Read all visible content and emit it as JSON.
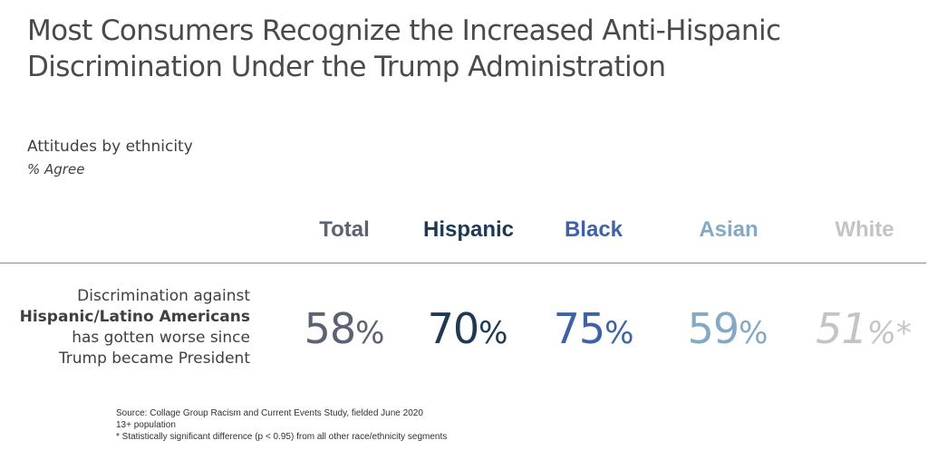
{
  "title": {
    "line1": "Most Consumers Recognize the Increased Anti-Hispanic",
    "line2": "Discrimination Under the Trump Administration"
  },
  "subtitle": "Attitudes by ethnicity",
  "subnote": "% Agree",
  "row": {
    "line1": "Discrimination against",
    "line2": "Hispanic/Latino Americans",
    "line3": "has gotten worse since",
    "line4": "Trump became President"
  },
  "footnotes": {
    "source": "Source: Collage Group Racism and Current Events Study, fielded June 2020",
    "population": "13+ population",
    "significance": "* Statistically significant difference (p < 0.95) from all other race/ethnicity segments"
  },
  "chart_data": {
    "type": "table",
    "unit": "%",
    "rows": [
      "Discrimination against Hispanic/Latino Americans has gotten worse since Trump became President"
    ],
    "columns": [
      {
        "name": "Total",
        "value": 58,
        "value_text": "58",
        "unit_text": "%",
        "marker": "",
        "color": "#5b6373"
      },
      {
        "name": "Hispanic",
        "value": 70,
        "value_text": "70",
        "unit_text": "%",
        "marker": "",
        "color": "#1e3a52"
      },
      {
        "name": "Black",
        "value": 75,
        "value_text": "75",
        "unit_text": "%",
        "marker": "",
        "color": "#3f62a6"
      },
      {
        "name": "Asian",
        "value": 59,
        "value_text": "59",
        "unit_text": "%",
        "marker": "",
        "color": "#86a9c3"
      },
      {
        "name": "White",
        "value": 51,
        "value_text": "51",
        "unit_text": "%",
        "marker": "*",
        "color": "#c4c4c4"
      }
    ]
  }
}
